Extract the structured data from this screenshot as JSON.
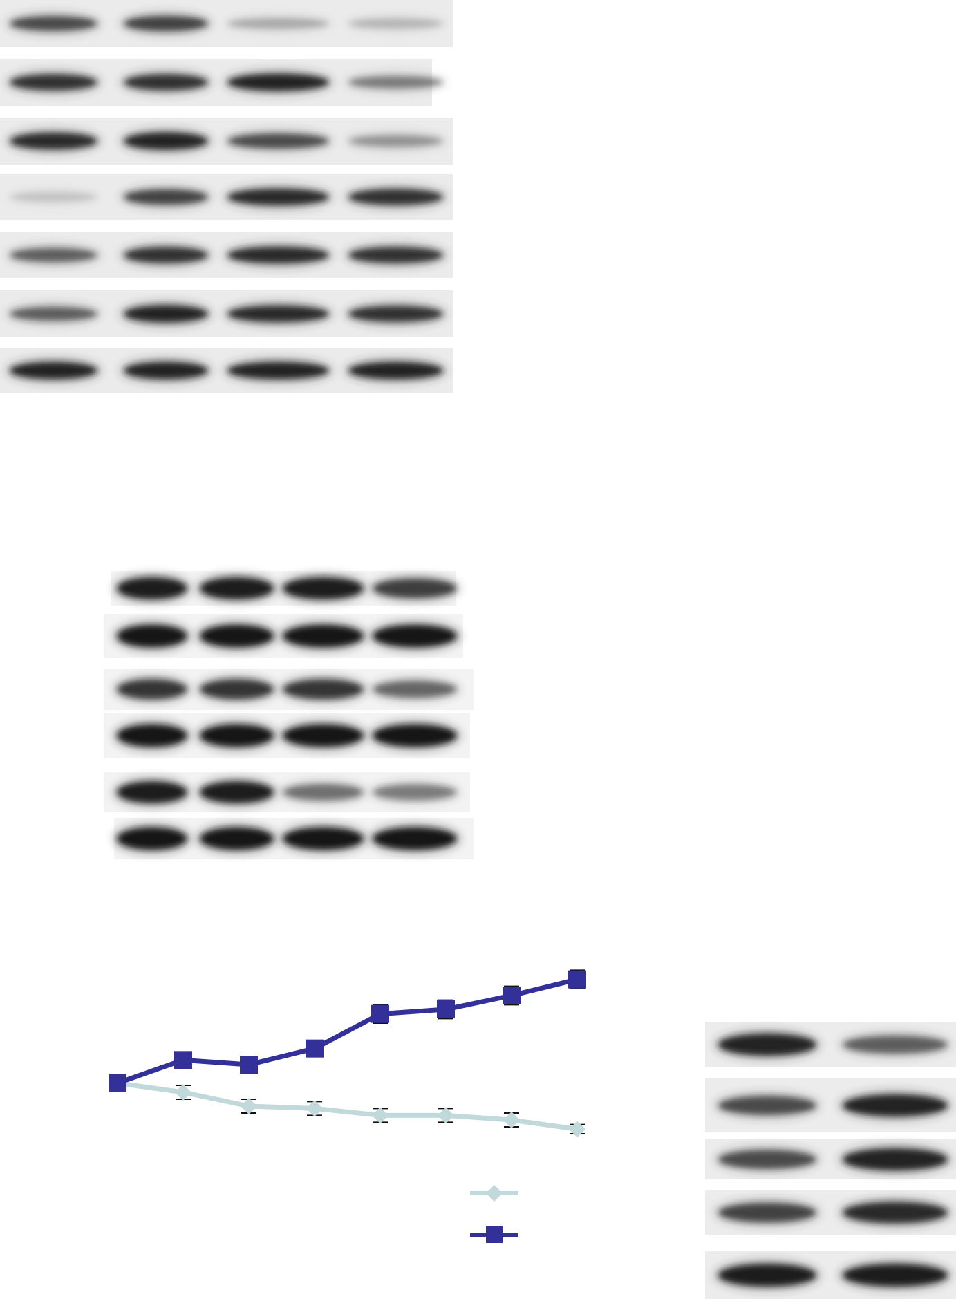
{
  "panels": {
    "blot_a": {
      "lane_count": 4,
      "band_color": "#1c1c1c",
      "membrane_color": "#ebebeb",
      "strips": [
        {
          "intensities": [
            0.7,
            0.75,
            0.25,
            0.2
          ]
        },
        {
          "intensities": [
            0.85,
            0.85,
            0.95,
            0.45
          ]
        },
        {
          "intensities": [
            0.9,
            0.95,
            0.7,
            0.35
          ]
        },
        {
          "intensities": [
            0.15,
            0.75,
            0.9,
            0.85
          ]
        },
        {
          "intensities": [
            0.6,
            0.85,
            0.9,
            0.85
          ]
        },
        {
          "intensities": [
            0.6,
            0.95,
            0.9,
            0.85
          ]
        },
        {
          "intensities": [
            0.95,
            0.95,
            0.95,
            0.95
          ]
        }
      ]
    },
    "blot_b": {
      "lane_count": 4,
      "band_color": "#141414",
      "membrane_color": "#f3f3f3",
      "strips": [
        {
          "intensities": [
            0.95,
            0.95,
            0.95,
            0.75
          ]
        },
        {
          "intensities": [
            1.0,
            1.0,
            1.0,
            1.0
          ]
        },
        {
          "intensities": [
            0.8,
            0.8,
            0.8,
            0.55
          ]
        },
        {
          "intensities": [
            1.0,
            1.0,
            1.0,
            1.0
          ]
        },
        {
          "intensities": [
            0.95,
            0.95,
            0.5,
            0.45
          ]
        },
        {
          "intensities": [
            1.0,
            1.0,
            1.0,
            1.0
          ]
        }
      ]
    },
    "blot_c": {
      "lane_count": 2,
      "band_color": "#1a1a1a",
      "membrane_color": "#ececec",
      "strips": [
        {
          "intensities": [
            0.95,
            0.6
          ]
        },
        {
          "intensities": [
            0.7,
            0.95
          ]
        },
        {
          "intensities": [
            0.7,
            0.95
          ]
        },
        {
          "intensities": [
            0.75,
            0.9
          ]
        },
        {
          "intensities": [
            1.0,
            1.0
          ]
        }
      ]
    }
  },
  "chart_data": {
    "type": "line",
    "title": "",
    "xlabel": "",
    "ylabel": "",
    "x": [
      1,
      2,
      3,
      4,
      5,
      6,
      7,
      8
    ],
    "ylim": [
      0.6,
      1.5
    ],
    "grid": false,
    "legend": "bottom-right",
    "series": [
      {
        "marker": "diamond",
        "color": "#c2d9db",
        "values": [
          1.0,
          0.96,
          0.9,
          0.89,
          0.86,
          0.86,
          0.84,
          0.8
        ],
        "errors": [
          0.02,
          0.03,
          0.03,
          0.03,
          0.03,
          0.03,
          0.03,
          0.02
        ]
      },
      {
        "marker": "square",
        "color": "#33309a",
        "values": [
          1.0,
          1.1,
          1.08,
          1.15,
          1.3,
          1.32,
          1.38,
          1.45
        ],
        "errors": [
          0.03,
          0.03,
          0.03,
          0.03,
          0.04,
          0.04,
          0.04,
          0.04
        ]
      }
    ]
  }
}
